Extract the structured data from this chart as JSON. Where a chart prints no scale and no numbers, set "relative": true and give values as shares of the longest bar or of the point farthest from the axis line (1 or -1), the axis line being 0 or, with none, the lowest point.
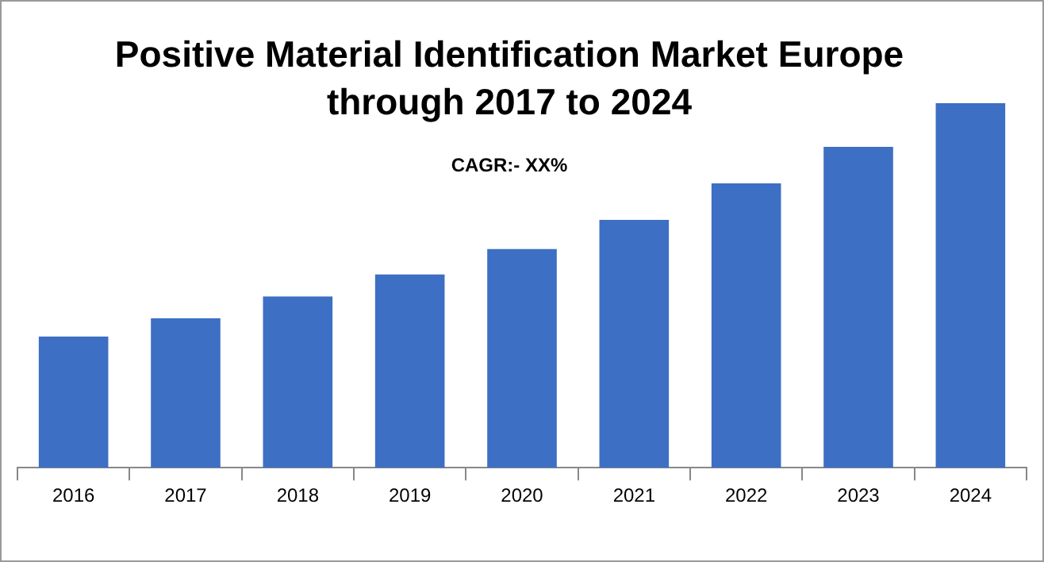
{
  "chart_data": {
    "type": "bar",
    "title": "Positive Material Identification Market Europe through 2017 to 2024",
    "subtitle": "CAGR:- XX%",
    "categories": [
      "2016",
      "2017",
      "2018",
      "2019",
      "2020",
      "2021",
      "2022",
      "2023",
      "2024"
    ],
    "values": [
      0.36,
      0.41,
      0.47,
      0.53,
      0.6,
      0.68,
      0.78,
      0.88,
      1
    ],
    "color": "#3d6fc4",
    "relative": true,
    "grid": false,
    "legend": false
  }
}
